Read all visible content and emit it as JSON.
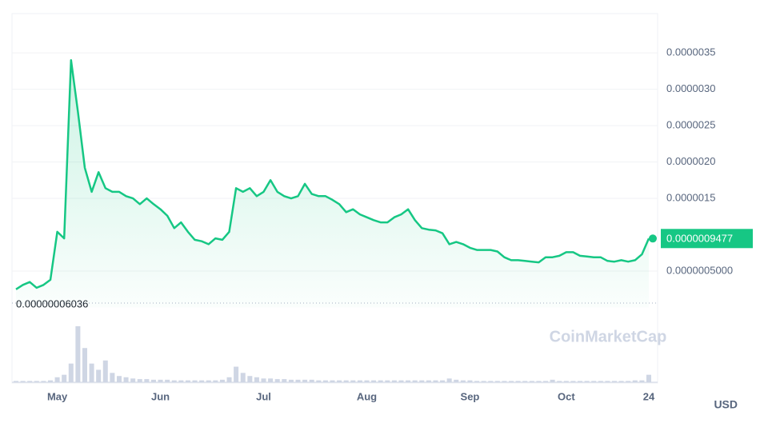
{
  "chart_data": {
    "type": "line",
    "currency": "USD",
    "watermark": "CoinMarketCap",
    "color": "#16c784",
    "grid": true,
    "categories": [
      null,
      null,
      null,
      null,
      null,
      null,
      "May",
      null,
      null,
      null,
      null,
      null,
      null,
      null,
      null,
      null,
      null,
      null,
      null,
      null,
      null,
      "Jun",
      null,
      null,
      null,
      null,
      null,
      null,
      null,
      null,
      null,
      null,
      null,
      null,
      null,
      null,
      "Jul",
      null,
      null,
      null,
      null,
      null,
      null,
      null,
      null,
      null,
      null,
      null,
      null,
      null,
      null,
      "Aug",
      null,
      null,
      null,
      null,
      null,
      null,
      null,
      null,
      null,
      null,
      null,
      null,
      null,
      null,
      "Sep",
      null,
      null,
      null,
      null,
      null,
      null,
      null,
      null,
      null,
      null,
      null,
      null,
      null,
      "Oct",
      null,
      null,
      null,
      null,
      null,
      null,
      null,
      null,
      null,
      null,
      null,
      "24"
    ],
    "values": [
      2.5e-07,
      3.1e-07,
      3.5e-07,
      2.7e-07,
      3.1e-07,
      3.8e-07,
      1.04e-06,
      9.5e-07,
      3.4e-06,
      2.69e-06,
      1.92e-06,
      1.59e-06,
      1.86e-06,
      1.64e-06,
      1.59e-06,
      1.59e-06,
      1.53e-06,
      1.5e-06,
      1.42e-06,
      1.5e-06,
      1.42e-06,
      1.35e-06,
      1.26e-06,
      1.09e-06,
      1.17e-06,
      1.04e-06,
      9.3e-07,
      9.1e-07,
      8.7e-07,
      9.5e-07,
      9.3e-07,
      1.04e-06,
      1.64e-06,
      1.59e-06,
      1.64e-06,
      1.53e-06,
      1.59e-06,
      1.75e-06,
      1.59e-06,
      1.53e-06,
      1.5e-06,
      1.53e-06,
      1.7e-06,
      1.56e-06,
      1.53e-06,
      1.53e-06,
      1.48e-06,
      1.42e-06,
      1.31e-06,
      1.35e-06,
      1.28e-06,
      1.24e-06,
      1.2e-06,
      1.17e-06,
      1.17e-06,
      1.24e-06,
      1.28e-06,
      1.35e-06,
      1.2e-06,
      1.09e-06,
      1.07e-06,
      1.06e-06,
      1.02e-06,
      8.7e-07,
      9e-07,
      8.7e-07,
      8.2e-07,
      7.9e-07,
      7.9e-07,
      7.9e-07,
      7.7e-07,
      6.9e-07,
      6.5e-07,
      6.5e-07,
      6.4e-07,
      6.3e-07,
      6.2e-07,
      6.9e-07,
      6.9e-07,
      7.1e-07,
      7.6e-07,
      7.6e-07,
      7.1e-07,
      7e-07,
      6.9e-07,
      6.9e-07,
      6.4e-07,
      6.3e-07,
      6.5e-07,
      6.3e-07,
      6.5e-07,
      7.3e-07,
      9.477e-07
    ],
    "volume": [
      2,
      2,
      2,
      2,
      2,
      3,
      8,
      12,
      30,
      90,
      55,
      30,
      20,
      35,
      15,
      10,
      8,
      6,
      5,
      5,
      4,
      4,
      4,
      3,
      3,
      3,
      3,
      3,
      3,
      3,
      4,
      8,
      25,
      15,
      10,
      8,
      6,
      6,
      5,
      5,
      4,
      4,
      4,
      4,
      3,
      3,
      3,
      3,
      3,
      3,
      3,
      3,
      3,
      3,
      3,
      3,
      3,
      3,
      3,
      3,
      3,
      3,
      3,
      6,
      4,
      3,
      3,
      2,
      2,
      2,
      2,
      2,
      2,
      2,
      2,
      2,
      2,
      2,
      4,
      2,
      2,
      2,
      2,
      2,
      2,
      2,
      2,
      2,
      2,
      2,
      3,
      3,
      12
    ],
    "ylim": [
      0,
      4.04e-06
    ],
    "yticks": [
      {
        "value": 5e-07,
        "label": "0.0000005000"
      },
      {
        "value": 1.5e-06,
        "label": "0.0000015"
      },
      {
        "value": 2e-06,
        "label": "0.0000020"
      },
      {
        "value": 2.5e-06,
        "label": "0.0000025"
      },
      {
        "value": 3e-06,
        "label": "0.0000030"
      },
      {
        "value": 3.5e-06,
        "label": "0.0000035"
      }
    ],
    "current_price": {
      "value": 9.477e-07,
      "label": "0.0000009477"
    },
    "min_price": {
      "value": 6.036e-08,
      "label": "0.00000006036"
    }
  }
}
